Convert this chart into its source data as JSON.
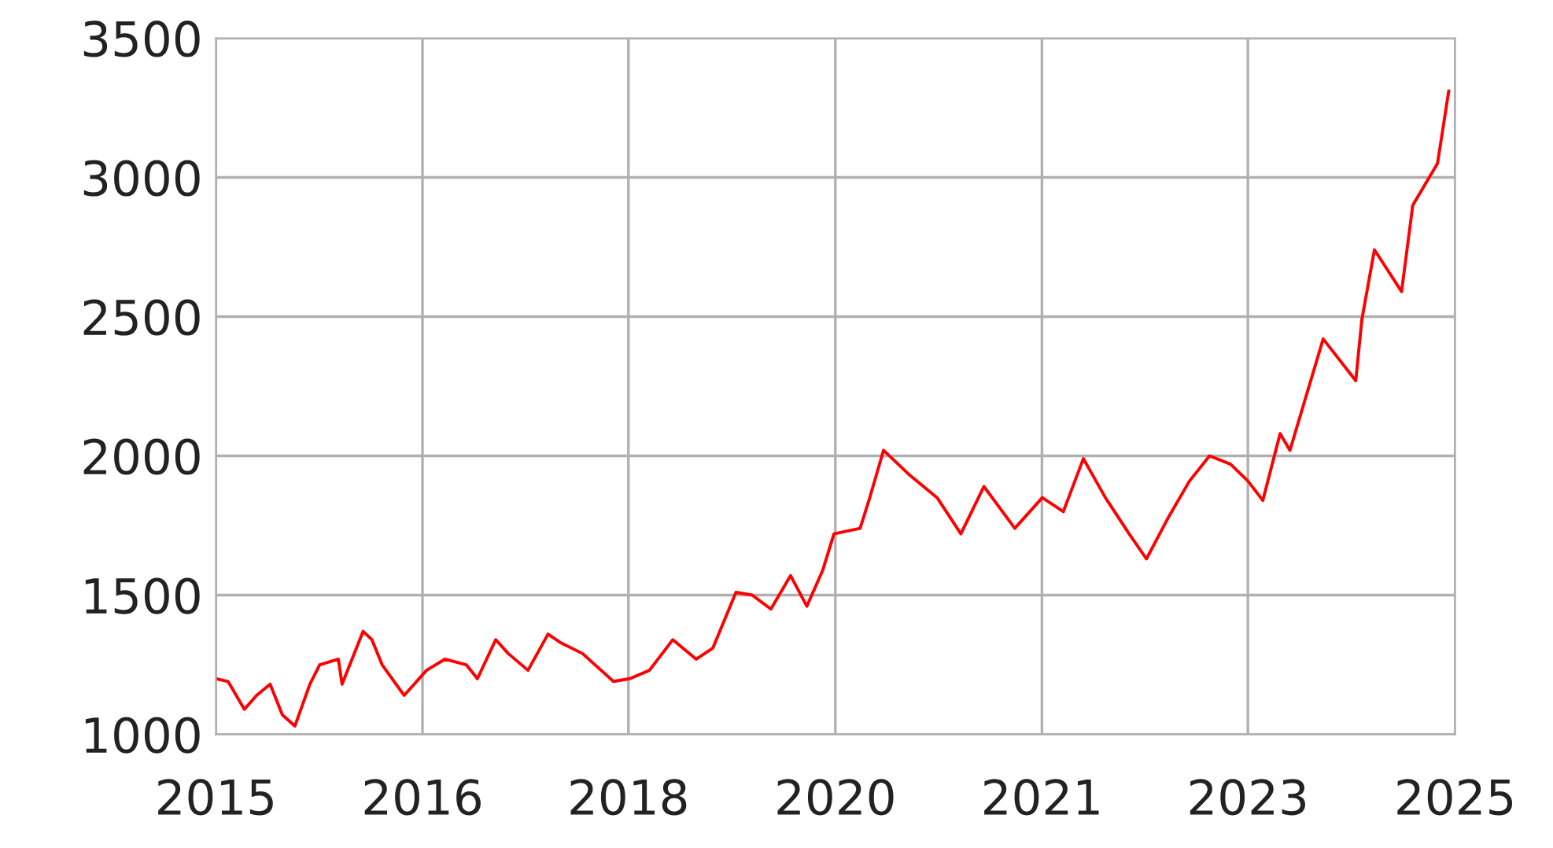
{
  "chart_data": {
    "type": "line",
    "x": [
      "2015-01-01",
      "2015-02-06",
      "2015-03-26",
      "2015-05-01",
      "2015-06-10",
      "2015-07-16",
      "2015-08-22",
      "2015-10-05",
      "2015-11-03",
      "2015-12-28",
      "2016-01-08",
      "2016-03-10",
      "2016-04-05",
      "2016-05-05",
      "2016-07-09",
      "2016-09-13",
      "2016-11-06",
      "2017-01-08",
      "2017-02-10",
      "2017-04-05",
      "2017-05-12",
      "2017-07-09",
      "2017-09-06",
      "2017-10-12",
      "2017-12-17",
      "2018-03-18",
      "2018-05-05",
      "2018-07-02",
      "2018-09-09",
      "2018-11-17",
      "2019-01-05",
      "2019-03-14",
      "2019-05-01",
      "2019-06-25",
      "2019-08-22",
      "2019-10-09",
      "2019-11-25",
      "2019-12-28",
      "2020-03-14",
      "2020-04-09",
      "2020-05-22",
      "2020-08-08",
      "2020-10-27",
      "2021-01-05",
      "2021-03-14",
      "2021-06-13",
      "2021-09-02",
      "2021-11-03",
      "2022-01-01",
      "2022-03-07",
      "2022-05-16",
      "2022-07-06",
      "2022-09-09",
      "2022-11-10",
      "2023-01-08",
      "2023-03-11",
      "2023-05-01",
      "2023-06-14",
      "2023-08-04",
      "2023-09-02",
      "2023-12-09",
      "2024-03-14",
      "2024-04-01",
      "2024-05-08",
      "2024-07-27",
      "2024-08-29",
      "2024-11-10",
      "2024-12-13"
    ],
    "series": [
      {
        "color": "#ff0000",
        "values": [
          1200,
          1190,
          1090,
          1140,
          1180,
          1070,
          1030,
          1180,
          1250,
          1270,
          1180,
          1370,
          1340,
          1250,
          1140,
          1230,
          1270,
          1250,
          1200,
          1340,
          1290,
          1230,
          1360,
          1330,
          1290,
          1190,
          1200,
          1230,
          1340,
          1270,
          1310,
          1510,
          1500,
          1450,
          1570,
          1460,
          1590,
          1720,
          1740,
          1840,
          2020,
          1930,
          1850,
          1720,
          1890,
          1740,
          1850,
          1800,
          1990,
          1850,
          1720,
          1630,
          1780,
          1910,
          2000,
          1970,
          1910,
          1840,
          2080,
          2020,
          2420,
          2270,
          2490,
          2740,
          2590,
          2900,
          3050,
          3310
        ]
      }
    ],
    "xlim": [
      "2015-01-01",
      "2025-01-01"
    ],
    "xticks": [
      {
        "value": "2015-01-01",
        "label": "2015"
      },
      {
        "value": "2016-09-01",
        "label": "2016"
      },
      {
        "value": "2018-05-01",
        "label": "2018"
      },
      {
        "value": "2020-01-01",
        "label": "2020"
      },
      {
        "value": "2021-09-01",
        "label": "2021"
      },
      {
        "value": "2023-05-01",
        "label": "2023"
      },
      {
        "value": "2025-01-01",
        "label": "2025"
      }
    ],
    "ylim": [
      1000,
      3500
    ],
    "yticks": [
      1000,
      1500,
      2000,
      2500,
      3000,
      3500
    ],
    "grid": true
  }
}
